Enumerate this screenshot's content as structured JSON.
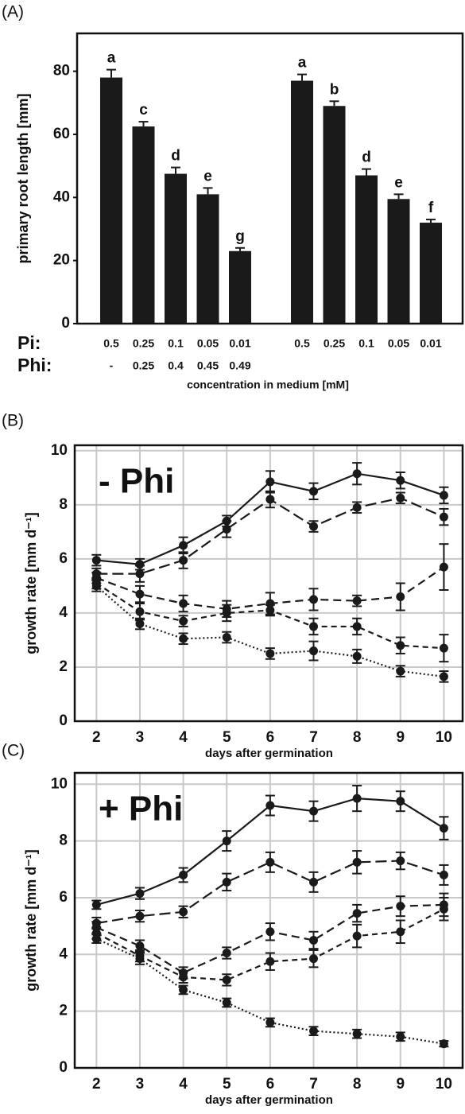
{
  "chart_data": [
    {
      "type": "bar",
      "panel": "(A)",
      "y_label": "primary root length [mm]",
      "x_label": "concentration in medium [mM]",
      "row_labels": [
        "Pi:",
        "Phi:"
      ],
      "categories": [
        "0.5",
        "0.25",
        "0.1",
        "0.05",
        "0.01",
        "0.5",
        "0.25",
        "0.1",
        "0.05",
        "0.01"
      ],
      "phi_categories": [
        "-",
        "0.25",
        "0.4",
        "0.45",
        "0.49",
        null,
        null,
        null,
        null,
        null
      ],
      "values": [
        78,
        62.5,
        47.5,
        41,
        23,
        77,
        69,
        47,
        39.5,
        32
      ],
      "errors": [
        2.5,
        1.5,
        2,
        2,
        1,
        2,
        1.5,
        2,
        1.5,
        1
      ],
      "letters": [
        "a",
        "c",
        "d",
        "e",
        "g",
        "a",
        "b",
        "d",
        "e",
        "f"
      ],
      "color": "#1a1a1a",
      "ylim": [
        0,
        92
      ],
      "yticks": [
        0,
        20,
        40,
        60,
        80
      ],
      "grid": false
    },
    {
      "type": "line",
      "panel": "(B)",
      "annotation": "- Phi",
      "y_label": "growth rate [mm d⁻¹]",
      "x_label": "days after germination",
      "x": [
        2,
        3,
        4,
        5,
        6,
        7,
        8,
        9,
        10
      ],
      "xlim": [
        1.5,
        10.45
      ],
      "xticks": [
        2,
        3,
        4,
        5,
        6,
        7,
        8,
        9,
        10
      ],
      "ylim": [
        0,
        10.2
      ],
      "yticks": [
        0,
        2,
        4,
        6,
        8,
        10
      ],
      "grid": true,
      "series": [
        {
          "color": "#1a1a1a",
          "dash": "solid",
          "values": [
            5.95,
            5.8,
            6.5,
            7.4,
            8.85,
            8.5,
            9.15,
            8.9,
            8.35
          ],
          "errors": [
            0.2,
            0.2,
            0.3,
            0.2,
            0.4,
            0.3,
            0.4,
            0.3,
            0.3
          ]
        },
        {
          "color": "#1a1a1a",
          "dash": "long-dash",
          "values": [
            5.45,
            5.45,
            5.95,
            7.1,
            8.2,
            7.2,
            7.9,
            8.25,
            7.55
          ],
          "errors": [
            0.2,
            0.3,
            0.3,
            0.3,
            0.3,
            0.2,
            0.2,
            0.2,
            0.3
          ]
        },
        {
          "color": "#1a1a1a",
          "dash": "dash",
          "values": [
            5.3,
            4.7,
            4.35,
            4.15,
            4.35,
            4.5,
            4.45,
            4.6,
            5.7
          ],
          "errors": [
            0.2,
            0.3,
            0.3,
            0.3,
            0.4,
            0.4,
            0.2,
            0.5,
            0.85
          ]
        },
        {
          "color": "#1a1a1a",
          "dash": "short-dash",
          "values": [
            5.1,
            4.05,
            3.7,
            4.0,
            4.1,
            3.5,
            3.5,
            2.8,
            2.7
          ],
          "errors": [
            0.2,
            0.3,
            0.2,
            0.3,
            0.2,
            0.3,
            0.3,
            0.3,
            0.5
          ]
        },
        {
          "color": "#1a1a1a",
          "dash": "dotted",
          "values": [
            5.0,
            3.6,
            3.05,
            3.1,
            2.5,
            2.6,
            2.4,
            1.85,
            1.65
          ],
          "errors": [
            0.2,
            0.2,
            0.2,
            0.2,
            0.2,
            0.35,
            0.25,
            0.2,
            0.2
          ]
        }
      ]
    },
    {
      "type": "line",
      "panel": "(C)",
      "annotation": "+ Phi",
      "y_label": "growth rate [mm d⁻¹]",
      "x_label": "days after germination",
      "x": [
        2,
        3,
        4,
        5,
        6,
        7,
        8,
        9,
        10
      ],
      "xlim": [
        1.5,
        10.45
      ],
      "xticks": [
        2,
        3,
        4,
        5,
        6,
        7,
        8,
        9,
        10
      ],
      "ylim": [
        0,
        10.4
      ],
      "yticks": [
        0,
        2,
        4,
        6,
        8,
        10
      ],
      "grid": true,
      "series": [
        {
          "color": "#1a1a1a",
          "dash": "solid",
          "values": [
            5.75,
            6.15,
            6.8,
            8.0,
            9.25,
            9.05,
            9.5,
            9.4,
            8.45
          ],
          "errors": [
            0.15,
            0.2,
            0.25,
            0.35,
            0.35,
            0.35,
            0.45,
            0.35,
            0.4
          ]
        },
        {
          "color": "#1a1a1a",
          "dash": "long-dash",
          "values": [
            5.1,
            5.35,
            5.5,
            6.55,
            7.25,
            6.55,
            7.25,
            7.3,
            6.8
          ],
          "errors": [
            0.2,
            0.2,
            0.2,
            0.3,
            0.35,
            0.35,
            0.4,
            0.3,
            0.35
          ]
        },
        {
          "color": "#1a1a1a",
          "dash": "dash",
          "values": [
            4.95,
            4.3,
            3.35,
            4.05,
            4.8,
            4.5,
            5.45,
            5.7,
            5.75
          ],
          "errors": [
            0.2,
            0.2,
            0.2,
            0.2,
            0.3,
            0.3,
            0.3,
            0.35,
            0.4
          ]
        },
        {
          "color": "#1a1a1a",
          "dash": "short-dash",
          "values": [
            4.75,
            3.95,
            3.2,
            3.1,
            3.75,
            3.85,
            4.65,
            4.8,
            5.6
          ],
          "errors": [
            0.2,
            0.2,
            0.2,
            0.2,
            0.3,
            0.3,
            0.4,
            0.4,
            0.4
          ]
        },
        {
          "color": "#1a1a1a",
          "dash": "dotted",
          "values": [
            4.55,
            3.85,
            2.75,
            2.3,
            1.6,
            1.3,
            1.2,
            1.1,
            0.85
          ],
          "errors": [
            0.15,
            0.2,
            0.15,
            0.15,
            0.15,
            0.15,
            0.15,
            0.15,
            0.1
          ]
        }
      ]
    }
  ]
}
